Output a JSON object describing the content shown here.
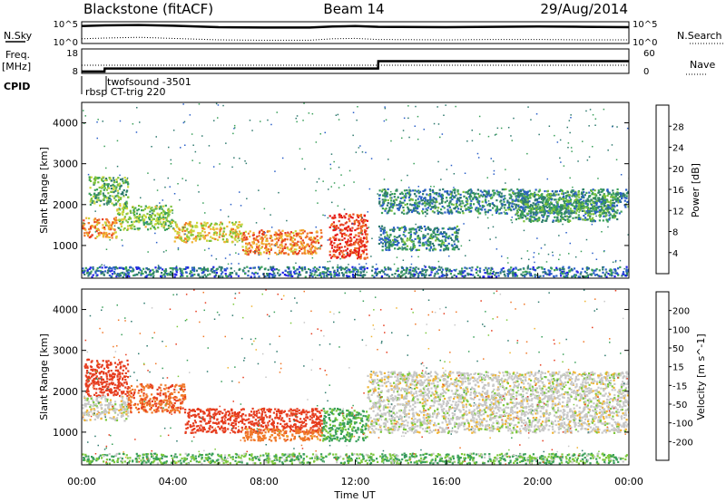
{
  "header": {
    "radar": "Blackstone (fitACF)",
    "beam": "Beam 14",
    "date": "29/Aug/2014"
  },
  "side_labels": {
    "n_sky": "N.Sky",
    "freq_top": "Freq.",
    "freq_bottom": "[MHz]",
    "cpid": "CPID",
    "n_search": "N.Search",
    "nave": "Nave"
  },
  "chart_data": [
    {
      "type": "line",
      "panel": "noise",
      "series": [
        {
          "name": "N.Sky",
          "style": "solid",
          "x_hours": [
            0.0,
            1.0,
            2.5,
            4.0,
            6.0,
            8.0,
            10.0,
            11.0,
            12.0,
            13.0,
            16.0,
            18.0,
            20.0,
            22.0,
            24.0
          ],
          "values_log10": [
            4.3,
            4.5,
            4.6,
            4.4,
            4.0,
            3.9,
            3.9,
            4.2,
            4.3,
            4.1,
            4.0,
            4.1,
            4.2,
            4.1,
            4.0
          ]
        },
        {
          "name": "N.Search",
          "style": "dotted",
          "x_hours": [
            0.0,
            1.0,
            2.5,
            4.0,
            6.0,
            8.0,
            10.0,
            11.0,
            12.0,
            13.0,
            16.0,
            18.0,
            20.0,
            22.0,
            24.0
          ],
          "values_log10": [
            0.8,
            1.0,
            1.2,
            0.9,
            0.5,
            0.4,
            0.4,
            0.8,
            0.9,
            0.6,
            0.5,
            0.6,
            0.6,
            0.5,
            0.5
          ]
        }
      ],
      "ylabels": [
        "10^5",
        "10^0"
      ],
      "right_ylabels": [
        "10^5",
        "10^0"
      ]
    },
    {
      "type": "line",
      "panel": "frequency",
      "series": [
        {
          "name": "Freq.",
          "style": "solid",
          "x_hours": [
            0.0,
            1.0,
            1.01,
            13.0,
            13.01,
            24.0
          ],
          "values_mhz": [
            8.8,
            8.8,
            10.0,
            10.0,
            13.0,
            13.0
          ]
        },
        {
          "name": "Nave",
          "style": "dotted",
          "x_hours": [
            0.0,
            24.0
          ],
          "values": [
            20,
            20
          ]
        }
      ],
      "ylabels": [
        "18",
        "8"
      ],
      "right_ylabels": [
        "60",
        "0"
      ]
    },
    {
      "type": "table",
      "panel": "cpid",
      "labels": [
        "twofsound -3501",
        "rbsp CT-trig 220"
      ]
    },
    {
      "type": "heatmap",
      "panel": "power",
      "ylabel": "Slant Range [km]",
      "yticks": [
        1000,
        2000,
        3000,
        4000
      ],
      "ylim": [
        200,
        4500
      ],
      "colorbar_label": "Power [dB]",
      "colorbar_ticks": [
        "28",
        "24",
        "20",
        "16",
        "12",
        "8",
        "4"
      ],
      "colors": [
        "#1e1ee6",
        "#2a5fc8",
        "#2e7a6e",
        "#3aa05a",
        "#7cc23c",
        "#c8d83c",
        "#f0b432",
        "#f07828",
        "#e63c1e",
        "#e61414"
      ],
      "patches": [
        {
          "x0": 0.0,
          "x1": 1.5,
          "y0": 1200,
          "y1": 1700,
          "value": 22
        },
        {
          "x0": 0.3,
          "x1": 2.0,
          "y0": 2000,
          "y1": 2700,
          "value": 12
        },
        {
          "x0": 1.5,
          "x1": 4.0,
          "y0": 1400,
          "y1": 2000,
          "value": 14
        },
        {
          "x0": 4.0,
          "x1": 7.0,
          "y0": 1100,
          "y1": 1600,
          "value": 18
        },
        {
          "x0": 7.0,
          "x1": 10.5,
          "y0": 800,
          "y1": 1400,
          "value": 22
        },
        {
          "x0": 10.8,
          "x1": 12.5,
          "y0": 700,
          "y1": 1800,
          "value": 26
        },
        {
          "x0": 13.0,
          "x1": 16.5,
          "y0": 900,
          "y1": 1500,
          "value": 8
        },
        {
          "x0": 13.0,
          "x1": 24.0,
          "y0": 1800,
          "y1": 2400,
          "value": 8
        },
        {
          "x0": 19.0,
          "x1": 23.5,
          "y0": 1600,
          "y1": 2300,
          "value": 10
        },
        {
          "x0": 0.0,
          "x1": 24.0,
          "y0": 250,
          "y1": 500,
          "value": 6
        }
      ]
    },
    {
      "type": "heatmap",
      "panel": "velocity",
      "xlabel": "Time UT",
      "xticks": [
        "00:00",
        "04:00",
        "08:00",
        "12:00",
        "16:00",
        "20:00",
        "00:00"
      ],
      "ylabel": "Slant Range [km]",
      "yticks": [
        1000,
        2000,
        3000,
        4000
      ],
      "ylim": [
        200,
        4500
      ],
      "colorbar_label": "Velocity [m s^-1]",
      "colorbar_ticks": [
        "200",
        "100",
        "50",
        "15",
        "-15",
        "-50",
        "-100",
        "-200"
      ],
      "colors": [
        "#1e28b4",
        "#2e7a6e",
        "#3aa05a",
        "#7cc83c",
        "#c8c8c8",
        "#f0b432",
        "#f07828",
        "#e63c1e",
        "#e61414"
      ],
      "patches": [
        {
          "x0": 0.1,
          "x1": 2.0,
          "y0": 1900,
          "y1": 2800,
          "value": -100
        },
        {
          "x0": 0.0,
          "x1": 2.0,
          "y0": 1300,
          "y1": 1900,
          "value": 0
        },
        {
          "x0": 2.0,
          "x1": 4.5,
          "y0": 1500,
          "y1": 2200,
          "value": -70
        },
        {
          "x0": 4.5,
          "x1": 10.5,
          "y0": 1000,
          "y1": 1600,
          "value": -110
        },
        {
          "x0": 7.0,
          "x1": 10.5,
          "y0": 800,
          "y1": 1100,
          "value": -50
        },
        {
          "x0": 10.5,
          "x1": 12.5,
          "y0": 800,
          "y1": 1600,
          "value": 40
        },
        {
          "x0": 12.5,
          "x1": 24.0,
          "y0": 1000,
          "y1": 2500,
          "value": 0
        },
        {
          "x0": 0.0,
          "x1": 24.0,
          "y0": 250,
          "y1": 500,
          "value": 30
        }
      ]
    }
  ]
}
